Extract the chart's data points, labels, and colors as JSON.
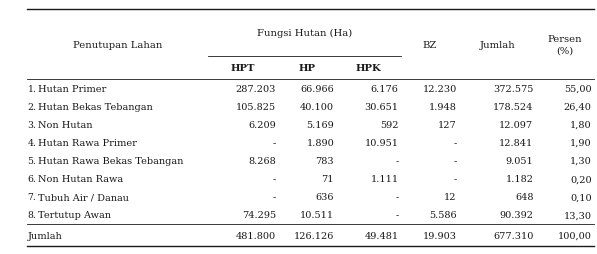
{
  "col_header_row1_label": "Penutupan Lahan",
  "col_header_row1_fh": "Fungsi Hutan (Ha)",
  "col_header_row1_bz": "BZ",
  "col_header_row1_jumlah": "Jumlah",
  "col_header_row1_persen": "Persen\n(%)",
  "col_header_row2": [
    "HPT",
    "HP",
    "HPK"
  ],
  "rows": [
    [
      "1.",
      "Hutan Primer",
      "287.203",
      "66.966",
      "6.176",
      "12.230",
      "372.575",
      "55,00"
    ],
    [
      "2.",
      "Hutan Bekas Tebangan",
      "105.825",
      "40.100",
      "30.651",
      "1.948",
      "178.524",
      "26,40"
    ],
    [
      "3.",
      "Non Hutan",
      "6.209",
      "5.169",
      "592",
      "127",
      "12.097",
      "1,80"
    ],
    [
      "4.",
      "Hutan Rawa Primer",
      "-",
      "1.890",
      "10.951",
      "-",
      "12.841",
      "1,90"
    ],
    [
      "5.",
      "Hutan Rawa Bekas Tebangan",
      "8.268",
      "783",
      "-",
      "-",
      "9.051",
      "1,30"
    ],
    [
      "6.",
      "Non Hutan Rawa",
      "-",
      "71",
      "1.111",
      "-",
      "1.182",
      "0,20"
    ],
    [
      "7.",
      "Tubuh Air / Danau",
      "-",
      "636",
      "-",
      "12",
      "648",
      "0,10"
    ],
    [
      "8.",
      "Tertutup Awan",
      "74.295",
      "10.511",
      "-",
      "5.586",
      "90.392",
      "13,30"
    ]
  ],
  "footer": [
    "Jumlah",
    "481.800",
    "126.126",
    "49.481",
    "19.903",
    "677.310",
    "100,00"
  ],
  "bg_color": "#ffffff",
  "text_color": "#1a1a1a",
  "line_color": "#1a1a1a",
  "font_size": 7.0,
  "header_font_size": 7.2
}
